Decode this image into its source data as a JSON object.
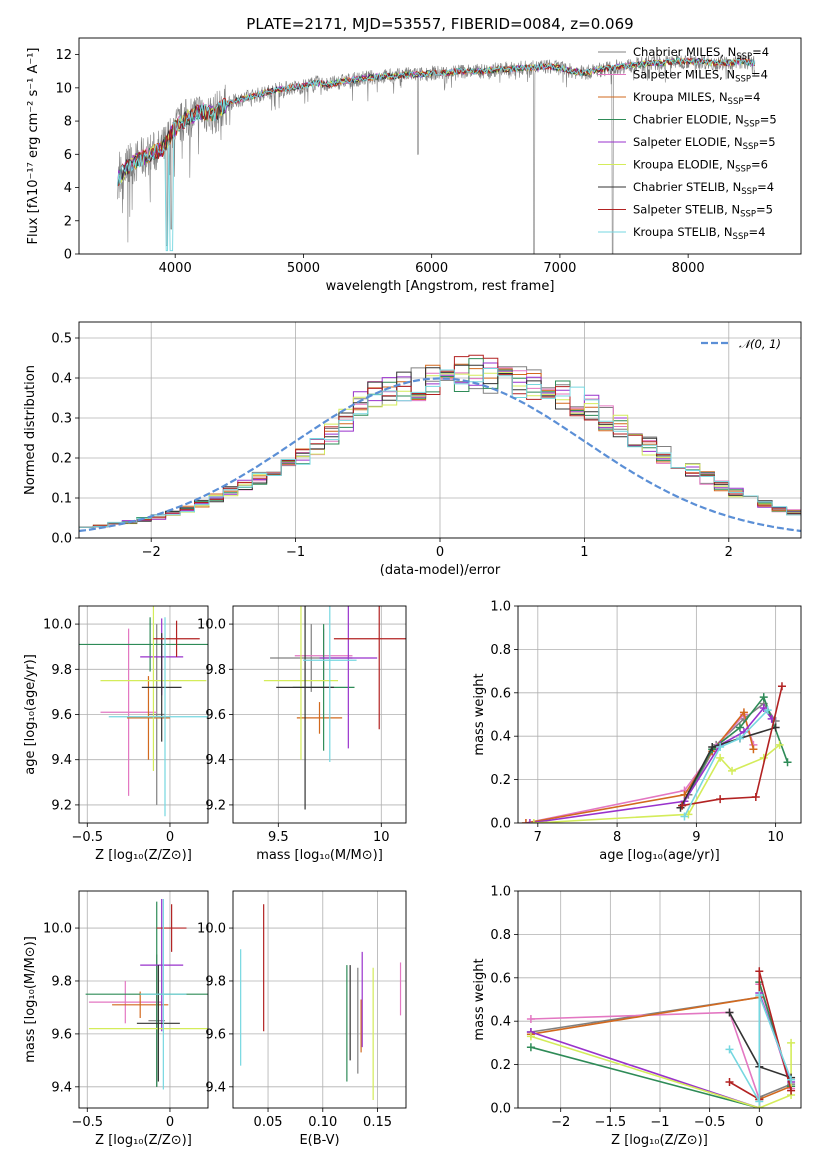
{
  "figure_title": "PLATE=2171, MJD=53557, FIBERID=0084, z=0.069",
  "palette": {
    "Chabrier MILES": "#808080",
    "Salpeter MILES": "#e377c2",
    "Kroupa MILES": "#d2691e",
    "Chabrier ELODIE": "#2e8b57",
    "Salpeter ELODIE": "#9932cc",
    "Kroupa ELODIE": "#d4ec5a",
    "Chabrier STELIB": "#333333",
    "Salpeter STELIB": "#b22222",
    "Kroupa STELIB": "#76d7e0",
    "gaussian": "#5b8fd6"
  },
  "chart_data": [
    {
      "id": "spectrum",
      "type": "line",
      "xlabel": "wavelength [Angstrom, rest frame]",
      "ylabel": "Flux [fλ10⁻¹⁷ erg cm⁻² s⁻¹ A⁻¹]",
      "xlim": [
        3250,
        8880
      ],
      "ylim": [
        0,
        13
      ],
      "xticks": [
        4000,
        5000,
        6000,
        7000,
        8000
      ],
      "yticks": [
        0,
        2,
        4,
        6,
        8,
        10,
        12
      ],
      "grid": false,
      "legend_position": "top-right",
      "legend": [
        {
          "name": "Chabrier MILES",
          "label": "Chabrier MILES, N",
          "sub": "SSP",
          "n": "=4"
        },
        {
          "name": "Salpeter MILES",
          "label": "Salpeter MILES, N",
          "sub": "SSP",
          "n": "=4"
        },
        {
          "name": "Kroupa MILES",
          "label": "Kroupa MILES, N",
          "sub": "SSP",
          "n": "=4"
        },
        {
          "name": "Chabrier ELODIE",
          "label": "Chabrier ELODIE, N",
          "sub": "SSP",
          "n": "=5"
        },
        {
          "name": "Salpeter ELODIE",
          "label": "Salpeter ELODIE, N",
          "sub": "SSP",
          "n": "=5"
        },
        {
          "name": "Kroupa ELODIE",
          "label": "Kroupa ELODIE, N",
          "sub": "SSP",
          "n": "=6"
        },
        {
          "name": "Chabrier STELIB",
          "label": "Chabrier STELIB, N",
          "sub": "SSP",
          "n": "=4"
        },
        {
          "name": "Salpeter STELIB",
          "label": "Salpeter STELIB, N",
          "sub": "SSP",
          "n": "=5"
        },
        {
          "name": "Kroupa STELIB",
          "label": "Kroupa STELIB, N",
          "sub": "SSP",
          "n": "=4"
        }
      ],
      "continuum": [
        [
          3560,
          4.6
        ],
        [
          3620,
          5.2
        ],
        [
          3700,
          5.6
        ],
        [
          3800,
          6.0
        ],
        [
          3900,
          6.3
        ],
        [
          3950,
          7.0
        ],
        [
          4000,
          7.6
        ],
        [
          4100,
          8.2
        ],
        [
          4200,
          8.6
        ],
        [
          4300,
          8.4
        ],
        [
          4400,
          9.0
        ],
        [
          4500,
          9.3
        ],
        [
          4600,
          9.5
        ],
        [
          4700,
          9.7
        ],
        [
          4800,
          9.9
        ],
        [
          4900,
          10.0
        ],
        [
          5000,
          10.1
        ],
        [
          5100,
          10.3
        ],
        [
          5200,
          10.2
        ],
        [
          5300,
          10.4
        ],
        [
          5400,
          10.5
        ],
        [
          5500,
          10.6
        ],
        [
          5600,
          10.7
        ],
        [
          5700,
          10.7
        ],
        [
          5800,
          10.8
        ],
        [
          5900,
          10.8
        ],
        [
          6000,
          10.9
        ],
        [
          6100,
          10.9
        ],
        [
          6200,
          11.0
        ],
        [
          6300,
          11.0
        ],
        [
          6400,
          11.0
        ],
        [
          6500,
          11.1
        ],
        [
          6600,
          11.1
        ],
        [
          6700,
          11.2
        ],
        [
          6800,
          11.2
        ],
        [
          6900,
          11.3
        ],
        [
          7000,
          11.2
        ],
        [
          7100,
          11.0
        ],
        [
          7200,
          10.9
        ],
        [
          7300,
          11.1
        ],
        [
          7400,
          11.2
        ],
        [
          7500,
          11.3
        ],
        [
          7600,
          11.4
        ],
        [
          7700,
          11.5
        ],
        [
          7800,
          11.5
        ],
        [
          7900,
          11.6
        ],
        [
          8000,
          11.6
        ],
        [
          8100,
          11.6
        ],
        [
          8200,
          11.5
        ],
        [
          8300,
          11.5
        ],
        [
          8400,
          11.6
        ],
        [
          8500,
          11.5
        ]
      ],
      "data_range": [
        3550,
        8520
      ],
      "dips": [
        [
          3934,
          0.5
        ],
        [
          3969,
          1.5
        ],
        [
          5892,
          6.0
        ],
        [
          6800,
          0.0
        ],
        [
          7410,
          0.0
        ]
      ]
    },
    {
      "id": "residuals",
      "type": "line",
      "xlabel": "(data-model)/error",
      "ylabel": "Normed distribution",
      "xlim": [
        -2.5,
        2.5
      ],
      "ylim": [
        0,
        0.54
      ],
      "xticks": [
        -2,
        -1,
        0,
        1,
        2
      ],
      "yticks": [
        0.0,
        0.1,
        0.2,
        0.3,
        0.4,
        0.5
      ],
      "grid": true,
      "legend_position": "top-right",
      "legend_label": "𝒩(0, 1)",
      "bin_width": 0.1,
      "bin_start": -2.5,
      "base_hist": [
        0.03,
        0.03,
        0.036,
        0.04,
        0.047,
        0.052,
        0.062,
        0.072,
        0.086,
        0.1,
        0.118,
        0.133,
        0.15,
        0.165,
        0.185,
        0.205,
        0.232,
        0.258,
        0.29,
        0.33,
        0.355,
        0.365,
        0.38,
        0.385,
        0.395,
        0.42,
        0.41,
        0.415,
        0.405,
        0.4,
        0.39,
        0.38,
        0.375,
        0.36,
        0.34,
        0.322,
        0.3,
        0.278,
        0.256,
        0.232,
        0.208,
        0.185,
        0.168,
        0.15,
        0.13,
        0.114,
        0.098,
        0.085,
        0.072,
        0.064
      ],
      "gaussian": {
        "mu": 0,
        "sigma": 1
      }
    },
    {
      "id": "age-vs-Z",
      "type": "scatter",
      "xlabel": "Z [log₁₀(Z/Z⊙)]",
      "ylabel": "age  [log₁₀(age/yr)]",
      "xlim": [
        -0.55,
        0.23
      ],
      "ylim": [
        9.12,
        10.08
      ],
      "xticks": [
        -0.5,
        0.0
      ],
      "yticks": [
        9.2,
        9.4,
        9.6,
        9.8,
        10.0
      ],
      "grid": true,
      "points": [
        {
          "m": "Chabrier MILES",
          "x": -0.08,
          "xe": 0.05,
          "y": 9.6,
          "ye": 0.4
        },
        {
          "m": "Salpeter MILES",
          "x": -0.25,
          "xe": 0.17,
          "y": 9.61,
          "ye": 0.37
        },
        {
          "m": "Kroupa MILES",
          "x": -0.13,
          "xe": 0.13,
          "y": 9.585,
          "ye": 0.185
        },
        {
          "m": "Chabrier ELODIE",
          "x": -0.12,
          "xe": 0.43,
          "y": 9.91,
          "ye": 0.12
        },
        {
          "m": "Salpeter ELODIE",
          "x": -0.05,
          "xe": 0.13,
          "y": 9.855,
          "ye": 0.17
        },
        {
          "m": "Kroupa ELODIE",
          "x": -0.1,
          "xe": 0.32,
          "y": 9.75,
          "ye": 0.4
        },
        {
          "m": "Chabrier STELIB",
          "x": -0.05,
          "xe": 0.12,
          "y": 9.72,
          "ye": 0.24
        },
        {
          "m": "Salpeter STELIB",
          "x": 0.04,
          "xe": 0.14,
          "y": 9.935,
          "ye": 0.08
        },
        {
          "m": "Kroupa STELIB",
          "x": -0.03,
          "xe": 0.34,
          "y": 9.59,
          "ye": 0.44
        }
      ]
    },
    {
      "id": "age-vs-mass",
      "type": "scatter",
      "xlabel": "mass [log₁₀(M/M⊙)]",
      "ylabel": "",
      "xlim": [
        9.28,
        10.12
      ],
      "ylim": [
        9.12,
        10.08
      ],
      "xticks": [
        9.5,
        10.0
      ],
      "yticks": [
        9.2,
        9.4,
        9.6,
        9.8,
        10.0
      ],
      "grid": true,
      "points": [
        {
          "m": "Chabrier MILES",
          "x": 9.66,
          "xe": 0.2,
          "y": 9.85,
          "ye": 0.15
        },
        {
          "m": "Salpeter MILES",
          "x": 9.72,
          "xe": 0.14,
          "y": 9.86,
          "ye": 0.12
        },
        {
          "m": "Kroupa MILES",
          "x": 9.7,
          "xe": 0.11,
          "y": 9.585,
          "ye": 0.07
        },
        {
          "m": "Chabrier ELODIE",
          "x": 9.72,
          "xe": 0.15,
          "y": 9.72,
          "ye": 0.28
        },
        {
          "m": "Salpeter ELODIE",
          "x": 9.84,
          "xe": 0.14,
          "y": 9.85,
          "ye": 0.4
        },
        {
          "m": "Kroupa ELODIE",
          "x": 9.61,
          "xe": 0.18,
          "y": 9.75,
          "ye": 0.35
        },
        {
          "m": "Chabrier STELIB",
          "x": 9.63,
          "xe": 0.14,
          "y": 9.72,
          "ye": 0.54
        },
        {
          "m": "Salpeter STELIB",
          "x": 9.99,
          "xe": 0.22,
          "y": 9.935,
          "ye": 0.4
        },
        {
          "m": "Kroupa STELIB",
          "x": 9.75,
          "xe": 0.13,
          "y": 9.84,
          "ye": 0.45
        }
      ]
    },
    {
      "id": "massweight-vs-age",
      "type": "line",
      "xlabel": "age  [log₁₀(age/yr)]",
      "ylabel": "mass weight",
      "xlim": [
        6.75,
        10.32
      ],
      "ylim": [
        0,
        1.0
      ],
      "xticks": [
        7,
        8,
        9,
        10
      ],
      "yticks": [
        0.0,
        0.2,
        0.4,
        0.6,
        0.8,
        1.0
      ],
      "grid": true,
      "series": [
        {
          "m": "Chabrier MILES",
          "x": [
            8.9,
            9.25,
            9.6,
            9.85,
            10.0
          ],
          "y": [
            0.13,
            0.36,
            0.48,
            0.55,
            0.47
          ]
        },
        {
          "m": "Salpeter MILES",
          "x": [
            6.85,
            8.85,
            9.25,
            9.6,
            9.72
          ],
          "y": [
            0.0,
            0.15,
            0.35,
            0.5,
            0.36
          ]
        },
        {
          "m": "Kroupa MILES",
          "x": [
            6.85,
            8.85,
            9.2,
            9.6,
            9.72
          ],
          "y": [
            0.0,
            0.13,
            0.33,
            0.51,
            0.34
          ]
        },
        {
          "m": "Chabrier ELODIE",
          "x": [
            8.82,
            9.2,
            9.55,
            9.85,
            10.15
          ],
          "y": [
            0.08,
            0.34,
            0.44,
            0.58,
            0.28
          ]
        },
        {
          "m": "Salpeter ELODIE",
          "x": [
            6.9,
            8.85,
            9.3,
            9.6,
            9.85,
            9.95
          ],
          "y": [
            0.0,
            0.1,
            0.36,
            0.42,
            0.53,
            0.48
          ]
        },
        {
          "m": "Kroupa ELODIE",
          "x": [
            6.95,
            8.9,
            9.3,
            9.45,
            9.85,
            10.05
          ],
          "y": [
            0.0,
            0.04,
            0.3,
            0.24,
            0.3,
            0.36
          ]
        },
        {
          "m": "Chabrier STELIB",
          "x": [
            8.8,
            9.2,
            9.55,
            10.0
          ],
          "y": [
            0.07,
            0.35,
            0.39,
            0.44
          ]
        },
        {
          "m": "Salpeter STELIB",
          "x": [
            8.82,
            9.3,
            9.75,
            10.08
          ],
          "y": [
            0.08,
            0.11,
            0.12,
            0.63
          ]
        },
        {
          "m": "Kroupa STELIB",
          "x": [
            8.85,
            9.3,
            9.55,
            9.9
          ],
          "y": [
            0.03,
            0.35,
            0.39,
            0.52
          ]
        }
      ]
    },
    {
      "id": "mass-vs-Z",
      "type": "scatter",
      "xlabel": "Z [log₁₀(Z/Z⊙)]",
      "ylabel": "mass [log₁₀(M/M⊙)]",
      "xlim": [
        -0.55,
        0.23
      ],
      "ylim": [
        9.32,
        10.14
      ],
      "xticks": [
        -0.5,
        0.0
      ],
      "yticks": [
        9.4,
        9.6,
        9.8,
        10.0
      ],
      "grid": true,
      "points": [
        {
          "m": "Chabrier MILES",
          "x": -0.08,
          "xe": 0.05,
          "y": 9.65,
          "ye": 0.25
        },
        {
          "m": "Salpeter MILES",
          "x": -0.27,
          "xe": 0.22,
          "y": 9.72,
          "ye": 0.08
        },
        {
          "m": "Kroupa MILES",
          "x": -0.18,
          "xe": 0.17,
          "y": 9.71,
          "ye": 0.05
        },
        {
          "m": "Chabrier ELODIE",
          "x": -0.08,
          "xe": 0.43,
          "y": 9.75,
          "ye": 0.35
        },
        {
          "m": "Salpeter ELODIE",
          "x": -0.05,
          "xe": 0.13,
          "y": 9.86,
          "ye": 0.25
        },
        {
          "m": "Kroupa ELODIE",
          "x": -0.07,
          "xe": 0.42,
          "y": 9.62,
          "ye": 0.02
        },
        {
          "m": "Chabrier STELIB",
          "x": -0.07,
          "xe": 0.13,
          "y": 9.64,
          "ye": 0.22
        },
        {
          "m": "Salpeter STELIB",
          "x": 0.01,
          "xe": 0.09,
          "y": 10.0,
          "ye": 0.09
        },
        {
          "m": "Kroupa STELIB",
          "x": -0.04,
          "xe": 0.14,
          "y": 9.75,
          "ye": 0.36
        }
      ]
    },
    {
      "id": "mass-vs-EBV",
      "type": "scatter",
      "xlabel": "E(B-V)",
      "ylabel": "",
      "xlim": [
        0.018,
        0.176
      ],
      "ylim": [
        9.32,
        10.14
      ],
      "xticks": [
        0.05,
        0.1,
        0.15
      ],
      "xtick_labels": [
        "0.05",
        "0.10",
        "0.15"
      ],
      "yticks": [
        9.4,
        9.6,
        9.8,
        10.0
      ],
      "grid": true,
      "points": [
        {
          "m": "Chabrier MILES",
          "x": 0.132,
          "y": 9.65,
          "ye": 0.2
        },
        {
          "m": "Salpeter MILES",
          "x": 0.171,
          "y": 9.77,
          "ye": 0.1
        },
        {
          "m": "Kroupa MILES",
          "x": 0.135,
          "y": 9.63,
          "ye": 0.1
        },
        {
          "m": "Chabrier ELODIE",
          "x": 0.122,
          "y": 9.64,
          "ye": 0.22
        },
        {
          "m": "Salpeter ELODIE",
          "x": 0.136,
          "y": 9.73,
          "ye": 0.18
        },
        {
          "m": "Kroupa ELODIE",
          "x": 0.146,
          "y": 9.6,
          "ye": 0.25
        },
        {
          "m": "Chabrier STELIB",
          "x": 0.125,
          "y": 9.68,
          "ye": 0.18
        },
        {
          "m": "Salpeter STELIB",
          "x": 0.046,
          "y": 9.85,
          "ye": 0.24
        },
        {
          "m": "Kroupa STELIB",
          "x": 0.025,
          "y": 9.7,
          "ye": 0.22
        }
      ]
    },
    {
      "id": "massweight-vs-Z",
      "type": "line",
      "xlabel": "Z [log₁₀(Z/Z⊙)]",
      "ylabel": "mass weight",
      "xlim": [
        -2.43,
        0.42
      ],
      "ylim": [
        0,
        1.0
      ],
      "xticks": [
        -2.0,
        -1.5,
        -1.0,
        -0.5,
        0.0
      ],
      "yticks": [
        0.0,
        0.2,
        0.4,
        0.6,
        0.8,
        1.0
      ],
      "grid": true,
      "series": [
        {
          "m": "Chabrier MILES",
          "x": [
            -2.3,
            0.0,
            0.0,
            0.32
          ],
          "y": [
            0.35,
            0.51,
            0.05,
            0.11
          ]
        },
        {
          "m": "Salpeter MILES",
          "x": [
            -2.3,
            -0.3,
            0.0,
            0.0,
            0.32
          ],
          "y": [
            0.41,
            0.44,
            0.04,
            0.57,
            0.09
          ]
        },
        {
          "m": "Kroupa MILES",
          "x": [
            -2.3,
            0.0,
            0.0,
            0.32
          ],
          "y": [
            0.34,
            0.51,
            0.04,
            0.1
          ]
        },
        {
          "m": "Chabrier ELODIE",
          "x": [
            -2.3,
            0.0,
            0.0,
            0.32
          ],
          "y": [
            0.28,
            0.0,
            0.58,
            0.1
          ]
        },
        {
          "m": "Salpeter ELODIE",
          "x": [
            -2.3,
            0.0,
            0.0,
            0.32
          ],
          "y": [
            0.35,
            0.0,
            0.53,
            0.12
          ]
        },
        {
          "m": "Kroupa ELODIE",
          "x": [
            -2.3,
            0.0,
            0.32,
            0.32
          ],
          "y": [
            0.33,
            0.0,
            0.06,
            0.3
          ]
        },
        {
          "m": "Chabrier STELIB",
          "x": [
            -0.3,
            0.0,
            0.32
          ],
          "y": [
            0.44,
            0.19,
            0.14
          ]
        },
        {
          "m": "Salpeter STELIB",
          "x": [
            -0.3,
            0.0,
            0.0,
            0.32
          ],
          "y": [
            0.12,
            0.04,
            0.63,
            0.08
          ]
        },
        {
          "m": "Kroupa STELIB",
          "x": [
            -0.3,
            0.0,
            0.0,
            0.32
          ],
          "y": [
            0.27,
            0.03,
            0.52,
            0.13
          ]
        }
      ]
    }
  ]
}
